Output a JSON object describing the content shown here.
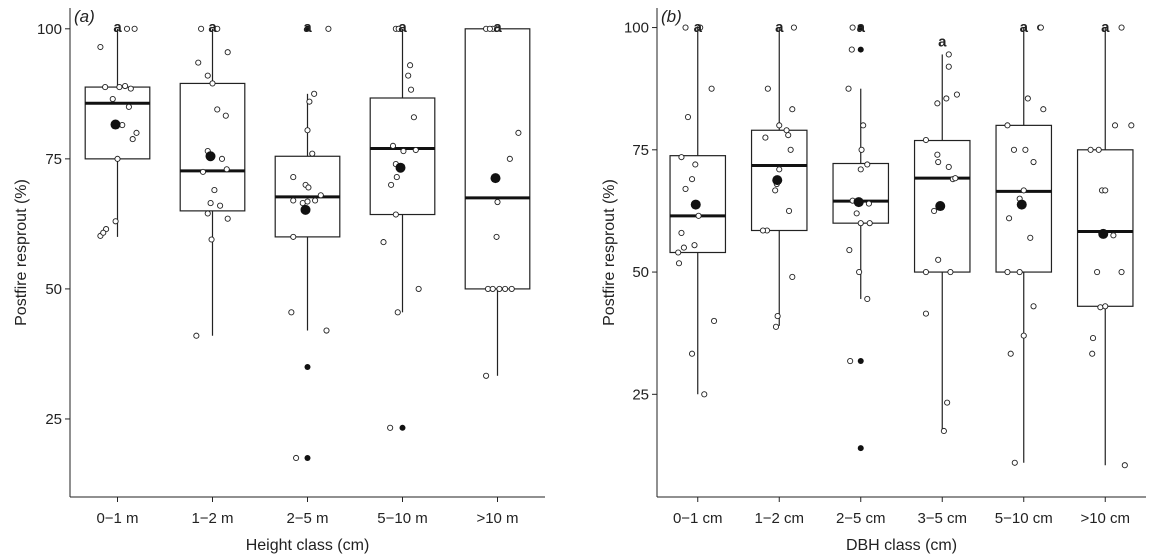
{
  "chart_data": [
    {
      "type": "boxplot",
      "panel_label": "(a)",
      "xlabel": "Height class (cm)",
      "ylabel": "Postfire resprout (%)",
      "ylim": [
        10,
        104
      ],
      "yticks": [
        25,
        50,
        75,
        100
      ],
      "categories": [
        "0−1 m",
        "1−2 m",
        "2−5 m",
        "5−10 m",
        ">10 m"
      ],
      "boxes": [
        {
          "q1": 75,
          "median": 85.7,
          "q3": 88.8,
          "whisker_low": 60,
          "whisker_high": 100,
          "mean": 81.6,
          "outliers": [],
          "sig": "a",
          "points": [
            [
              0.1,
              100
            ],
            [
              0.18,
              100
            ],
            [
              -0.18,
              96.5
            ],
            [
              -0.13,
              88.8
            ],
            [
              0.02,
              88.8
            ],
            [
              0.08,
              89
            ],
            [
              0.14,
              88.5
            ],
            [
              -0.05,
              86.5
            ],
            [
              0.12,
              85
            ],
            [
              0.2,
              80
            ],
            [
              0.16,
              78.8
            ],
            [
              0.05,
              81.5
            ],
            [
              0.0,
              75
            ],
            [
              -0.12,
              61.5
            ],
            [
              -0.18,
              60.2
            ],
            [
              -0.15,
              60.8
            ],
            [
              -0.02,
              63
            ]
          ]
        },
        {
          "q1": 65,
          "median": 72.7,
          "q3": 89.5,
          "whisker_low": 41,
          "whisker_high": 100,
          "mean": 75.5,
          "outliers": [],
          "sig": "a",
          "points": [
            [
              -0.12,
              100
            ],
            [
              0.05,
              100
            ],
            [
              0.16,
              95.5
            ],
            [
              -0.15,
              93.5
            ],
            [
              -0.05,
              91
            ],
            [
              0.0,
              89.5
            ],
            [
              0.14,
              83.3
            ],
            [
              0.05,
              84.5
            ],
            [
              0.1,
              75
            ],
            [
              0.15,
              73
            ],
            [
              -0.1,
              72.5
            ],
            [
              -0.05,
              76.5
            ],
            [
              0.02,
              69
            ],
            [
              -0.02,
              66.5
            ],
            [
              0.08,
              66
            ],
            [
              -0.05,
              64.5
            ],
            [
              0.16,
              63.5
            ],
            [
              -0.01,
              59.5
            ],
            [
              -0.17,
              41
            ]
          ]
        },
        {
          "q1": 60,
          "median": 67.7,
          "q3": 75.5,
          "whisker_low": 42,
          "whisker_high": 87.5,
          "mean": 65.2,
          "outliers": [
            100,
            35,
            17.5
          ],
          "sig": "a",
          "points": [
            [
              0.22,
              100
            ],
            [
              0.07,
              87.5
            ],
            [
              0.02,
              86
            ],
            [
              0.0,
              80.5
            ],
            [
              0.05,
              76
            ],
            [
              -0.15,
              71.5
            ],
            [
              -0.02,
              70
            ],
            [
              0.01,
              69.5
            ],
            [
              -0.15,
              67
            ],
            [
              -0.05,
              66.5
            ],
            [
              0.0,
              66.8
            ],
            [
              0.08,
              67
            ],
            [
              0.14,
              68
            ],
            [
              -0.15,
              60
            ],
            [
              0.2,
              42
            ],
            [
              -0.17,
              45.5
            ],
            [
              -0.12,
              17.5
            ]
          ]
        },
        {
          "q1": 64.3,
          "median": 77,
          "q3": 86.7,
          "whisker_low": 45.5,
          "whisker_high": 100,
          "mean": 73.3,
          "outliers": [
            23.3
          ],
          "sig": "a",
          "points": [
            [
              -0.07,
              100
            ],
            [
              -0.04,
              100
            ],
            [
              0.08,
              93
            ],
            [
              0.06,
              91
            ],
            [
              0.09,
              88.3
            ],
            [
              0.12,
              83
            ],
            [
              -0.1,
              77.5
            ],
            [
              0.14,
              76.7
            ],
            [
              0.01,
              76.5
            ],
            [
              -0.07,
              74
            ],
            [
              -0.12,
              70
            ],
            [
              -0.06,
              71.5
            ],
            [
              -0.2,
              59
            ],
            [
              -0.07,
              64.3
            ],
            [
              0.17,
              50
            ],
            [
              -0.05,
              45.5
            ],
            [
              -0.13,
              23.3
            ]
          ]
        },
        {
          "q1": 50,
          "median": 67.5,
          "q3": 100,
          "whisker_low": 33.3,
          "whisker_high": 100,
          "mean": 71.3,
          "outliers": [],
          "sig": "a",
          "points": [
            [
              -0.12,
              100
            ],
            [
              -0.05,
              100
            ],
            [
              -0.08,
              100
            ],
            [
              0.0,
              100
            ],
            [
              0.22,
              80
            ],
            [
              0.13,
              75
            ],
            [
              0.0,
              66.7
            ],
            [
              -0.01,
              60
            ],
            [
              -0.1,
              50
            ],
            [
              -0.05,
              50
            ],
            [
              0.02,
              50
            ],
            [
              0.08,
              50
            ],
            [
              0.15,
              50
            ],
            [
              -0.12,
              33.3
            ]
          ]
        }
      ]
    },
    {
      "type": "boxplot",
      "panel_label": "(b)",
      "xlabel": "DBH class (cm)",
      "ylabel": "Postfire resprout (%)",
      "ylim": [
        4,
        104
      ],
      "yticks": [
        25,
        50,
        75,
        100
      ],
      "categories": [
        "0−1 cm",
        "1−2 cm",
        "2−5 cm",
        "3−5 cm",
        "5−10 cm",
        ">10 cm"
      ],
      "boxes": [
        {
          "q1": 54,
          "median": 61.5,
          "q3": 73.8,
          "whisker_low": 25,
          "whisker_high": 100,
          "mean": 63.8,
          "outliers": [],
          "sig": "a",
          "points": [
            [
              -0.15,
              100
            ],
            [
              0.03,
              100
            ],
            [
              0.17,
              87.5
            ],
            [
              -0.12,
              81.7
            ],
            [
              -0.2,
              73.5
            ],
            [
              -0.15,
              67
            ],
            [
              -0.07,
              69
            ],
            [
              -0.03,
              72
            ],
            [
              0.01,
              61.5
            ],
            [
              -0.2,
              58
            ],
            [
              -0.17,
              55
            ],
            [
              -0.24,
              54
            ],
            [
              -0.23,
              51.8
            ],
            [
              -0.04,
              55.5
            ],
            [
              0.2,
              40
            ],
            [
              -0.07,
              33.3
            ],
            [
              0.08,
              25
            ]
          ]
        },
        {
          "q1": 58.5,
          "median": 71.8,
          "q3": 79,
          "whisker_low": 39,
          "whisker_high": 100,
          "mean": 68.8,
          "outliers": [],
          "sig": "a",
          "points": [
            [
              0.18,
              100
            ],
            [
              -0.14,
              87.5
            ],
            [
              0.16,
              83.3
            ],
            [
              0.0,
              80
            ],
            [
              0.09,
              79
            ],
            [
              0.11,
              78
            ],
            [
              0.14,
              75
            ],
            [
              -0.17,
              77.5
            ],
            [
              -0.03,
              68
            ],
            [
              0.0,
              71
            ],
            [
              -0.05,
              66.7
            ],
            [
              0.12,
              62.5
            ],
            [
              -0.15,
              58.5
            ],
            [
              -0.2,
              58.5
            ],
            [
              0.16,
              49
            ],
            [
              -0.02,
              41
            ],
            [
              -0.04,
              38.8
            ]
          ]
        },
        {
          "q1": 60,
          "median": 64.5,
          "q3": 72.2,
          "whisker_low": 44.5,
          "whisker_high": 87.5,
          "mean": 64.3,
          "outliers": [
            100,
            95.5,
            31.8,
            14
          ],
          "sig": "a",
          "points": [
            [
              -0.1,
              100
            ],
            [
              0.0,
              100
            ],
            [
              -0.11,
              95.5
            ],
            [
              -0.15,
              87.5
            ],
            [
              0.03,
              80
            ],
            [
              0.01,
              75
            ],
            [
              0.08,
              72
            ],
            [
              0.0,
              71
            ],
            [
              -0.1,
              64.6
            ],
            [
              -0.05,
              64.5
            ],
            [
              0.1,
              64
            ],
            [
              -0.05,
              62
            ],
            [
              0.0,
              60
            ],
            [
              0.11,
              60
            ],
            [
              -0.14,
              54.5
            ],
            [
              -0.02,
              50
            ],
            [
              0.08,
              44.5
            ],
            [
              -0.13,
              31.8
            ]
          ]
        },
        {
          "q1": 50,
          "median": 69.2,
          "q3": 76.9,
          "whisker_low": 17.5,
          "whisker_high": 94.5,
          "mean": 63.5,
          "outliers": [],
          "sig": "a",
          "points": [
            [
              0.08,
              94.5
            ],
            [
              0.08,
              92
            ],
            [
              0.18,
              86.3
            ],
            [
              0.05,
              85.5
            ],
            [
              -0.06,
              84.5
            ],
            [
              -0.2,
              77
            ],
            [
              -0.06,
              74
            ],
            [
              0.08,
              71.5
            ],
            [
              0.13,
              69
            ],
            [
              0.16,
              69.2
            ],
            [
              -0.05,
              72.5
            ],
            [
              -0.1,
              62.5
            ],
            [
              -0.2,
              50
            ],
            [
              0.1,
              50
            ],
            [
              -0.2,
              41.5
            ],
            [
              -0.05,
              52.5
            ],
            [
              0.06,
              23.3
            ],
            [
              0.02,
              17.5
            ]
          ]
        },
        {
          "q1": 50,
          "median": 66.5,
          "q3": 80,
          "whisker_low": 11,
          "whisker_high": 100,
          "mean": 63.8,
          "outliers": [],
          "sig": "a",
          "points": [
            [
              0.2,
              100
            ],
            [
              0.21,
              100
            ],
            [
              0.24,
              83.3
            ],
            [
              -0.2,
              80
            ],
            [
              0.05,
              85.5
            ],
            [
              -0.12,
              75
            ],
            [
              0.02,
              75
            ],
            [
              0.12,
              72.5
            ],
            [
              0.0,
              66.7
            ],
            [
              -0.05,
              65
            ],
            [
              -0.18,
              61
            ],
            [
              0.08,
              57
            ],
            [
              -0.2,
              50
            ],
            [
              -0.05,
              50
            ],
            [
              0.12,
              43
            ],
            [
              0.0,
              37
            ],
            [
              -0.16,
              33.3
            ],
            [
              -0.11,
              11
            ]
          ]
        },
        {
          "q1": 43,
          "median": 58.3,
          "q3": 75,
          "whisker_low": 10.5,
          "whisker_high": 100,
          "mean": 57.8,
          "outliers": [],
          "sig": "a",
          "points": [
            [
              0.2,
              100
            ],
            [
              0.12,
              80
            ],
            [
              0.32,
              80
            ],
            [
              -0.18,
              75
            ],
            [
              -0.08,
              75
            ],
            [
              -0.04,
              66.7
            ],
            [
              0.0,
              66.7
            ],
            [
              0.1,
              57.5
            ],
            [
              -0.1,
              50
            ],
            [
              0.2,
              50
            ],
            [
              -0.06,
              42.8
            ],
            [
              0.0,
              43
            ],
            [
              -0.15,
              36.5
            ],
            [
              -0.16,
              33.3
            ],
            [
              0.24,
              10.5
            ]
          ]
        }
      ]
    }
  ]
}
